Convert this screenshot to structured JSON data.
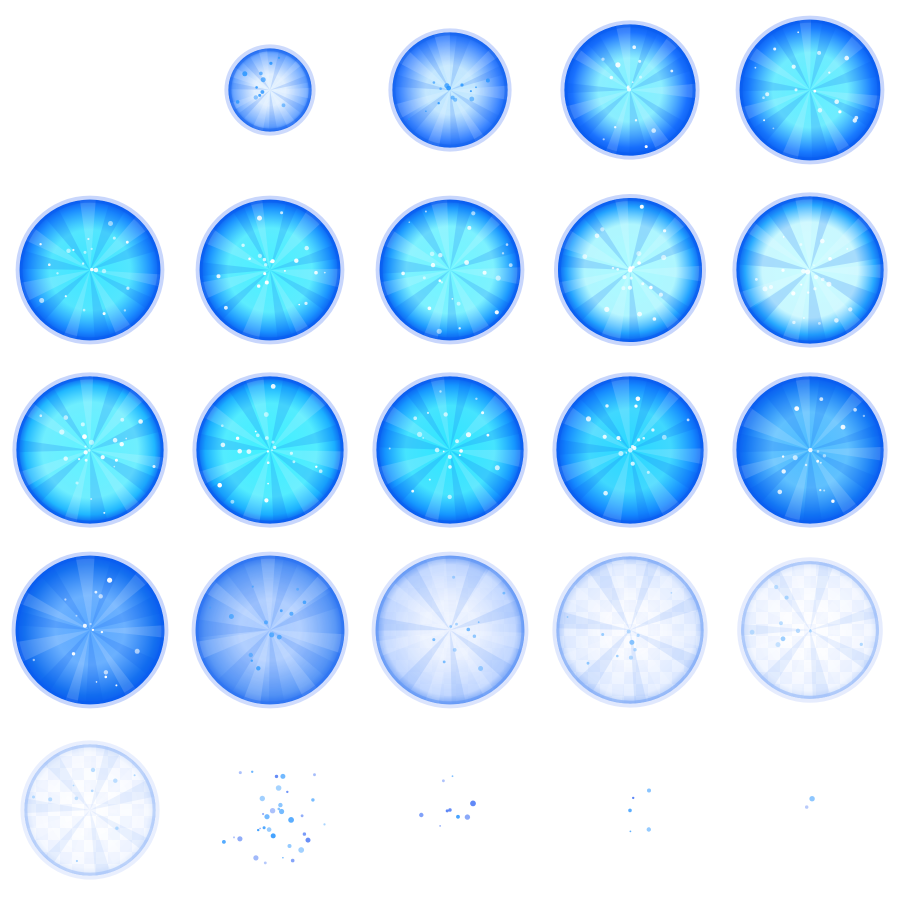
{
  "sprite_sheet": {
    "columns": 5,
    "rows": 5,
    "palette": {
      "deep": "#0a5cf0",
      "mid": "#1e90ff",
      "cyan": "#2ee6ff",
      "light": "#bfe6ff",
      "pale": "#dde8ff",
      "edge": "#3a6cf5"
    },
    "frames": [
      {
        "kind": "empty"
      },
      {
        "kind": "orb",
        "scale": 0.52,
        "glow": 0.1,
        "body": "#5a9cff",
        "core": "#dff0ff",
        "fade": 0.9,
        "checker": 0.0
      },
      {
        "kind": "orb",
        "scale": 0.72,
        "glow": 0.25,
        "body": "#2f7dff",
        "core": "#bfe8ff",
        "fade": 0.95,
        "checker": 0.0
      },
      {
        "kind": "orb",
        "scale": 0.82,
        "glow": 0.45,
        "body": "#1a72ff",
        "core": "#7ff2ff",
        "fade": 1.0,
        "checker": 0.0
      },
      {
        "kind": "orb",
        "scale": 0.88,
        "glow": 0.6,
        "body": "#1a7cff",
        "core": "#5ff0ff",
        "fade": 1.0,
        "checker": 0.0
      },
      {
        "kind": "orb",
        "scale": 0.88,
        "glow": 0.75,
        "body": "#1a8aff",
        "core": "#3ee8ff",
        "fade": 1.0,
        "checker": 0.0
      },
      {
        "kind": "orb",
        "scale": 0.88,
        "glow": 0.82,
        "body": "#1a92ff",
        "core": "#49f0ff",
        "fade": 1.0,
        "checker": 0.0
      },
      {
        "kind": "orb",
        "scale": 0.88,
        "glow": 0.9,
        "body": "#1d9aff",
        "core": "#6ff6ff",
        "fade": 1.0,
        "checker": 0.0
      },
      {
        "kind": "orb",
        "scale": 0.9,
        "glow": 0.95,
        "body": "#22a2ff",
        "core": "#aafbff",
        "fade": 1.0,
        "checker": 0.0
      },
      {
        "kind": "orb",
        "scale": 0.92,
        "glow": 1.0,
        "body": "#26a8ff",
        "core": "#c9fdff",
        "fade": 1.0,
        "checker": 0.0
      },
      {
        "kind": "orb",
        "scale": 0.92,
        "glow": 1.0,
        "body": "#1fb6ff",
        "core": "#5ff2ff",
        "fade": 1.0,
        "checker": 0.0
      },
      {
        "kind": "orb",
        "scale": 0.92,
        "glow": 0.95,
        "body": "#1aaeff",
        "core": "#3ef0ff",
        "fade": 1.0,
        "checker": 0.0
      },
      {
        "kind": "orb",
        "scale": 0.92,
        "glow": 0.85,
        "body": "#1596ff",
        "core": "#2ee6ff",
        "fade": 1.0,
        "checker": 0.0
      },
      {
        "kind": "orb",
        "scale": 0.92,
        "glow": 0.7,
        "body": "#1488ff",
        "core": "#28d8ff",
        "fade": 1.0,
        "checker": 0.0
      },
      {
        "kind": "orb",
        "scale": 0.92,
        "glow": 0.55,
        "body": "#1478f5",
        "core": "#4dbdff",
        "fade": 1.0,
        "checker": 0.0
      },
      {
        "kind": "orb",
        "scale": 0.93,
        "glow": 0.4,
        "body": "#1470f0",
        "core": "#5aa9ff",
        "fade": 1.0,
        "checker": 0.0
      },
      {
        "kind": "orb",
        "scale": 0.93,
        "glow": 0.2,
        "body": "#3d86f5",
        "core": "#9cc3ff",
        "fade": 0.85,
        "checker": 0.0
      },
      {
        "kind": "orb",
        "scale": 0.93,
        "glow": 0.05,
        "body": "#8fb6ff",
        "core": "#dfeaff",
        "fade": 0.65,
        "checker": 0.15
      },
      {
        "kind": "orb",
        "scale": 0.92,
        "glow": 0.0,
        "body": "#a9c7ff",
        "core": "#eef3ff",
        "fade": 0.55,
        "checker": 0.45
      },
      {
        "kind": "orb",
        "scale": 0.86,
        "glow": 0.0,
        "body": "#b7d0ff",
        "core": "#f3f6ff",
        "fade": 0.45,
        "checker": 0.6
      },
      {
        "kind": "orb",
        "scale": 0.82,
        "glow": 0.0,
        "body": "#bcd3ff",
        "core": "#f3f6ff",
        "fade": 0.4,
        "checker": 0.65
      },
      {
        "kind": "sparks",
        "count": 34,
        "spread": 0.55
      },
      {
        "kind": "sparks",
        "count": 9,
        "spread": 0.35
      },
      {
        "kind": "sparks",
        "count": 5,
        "spread": 0.3
      },
      {
        "kind": "sparks",
        "count": 2,
        "spread": 0.2
      }
    ]
  }
}
